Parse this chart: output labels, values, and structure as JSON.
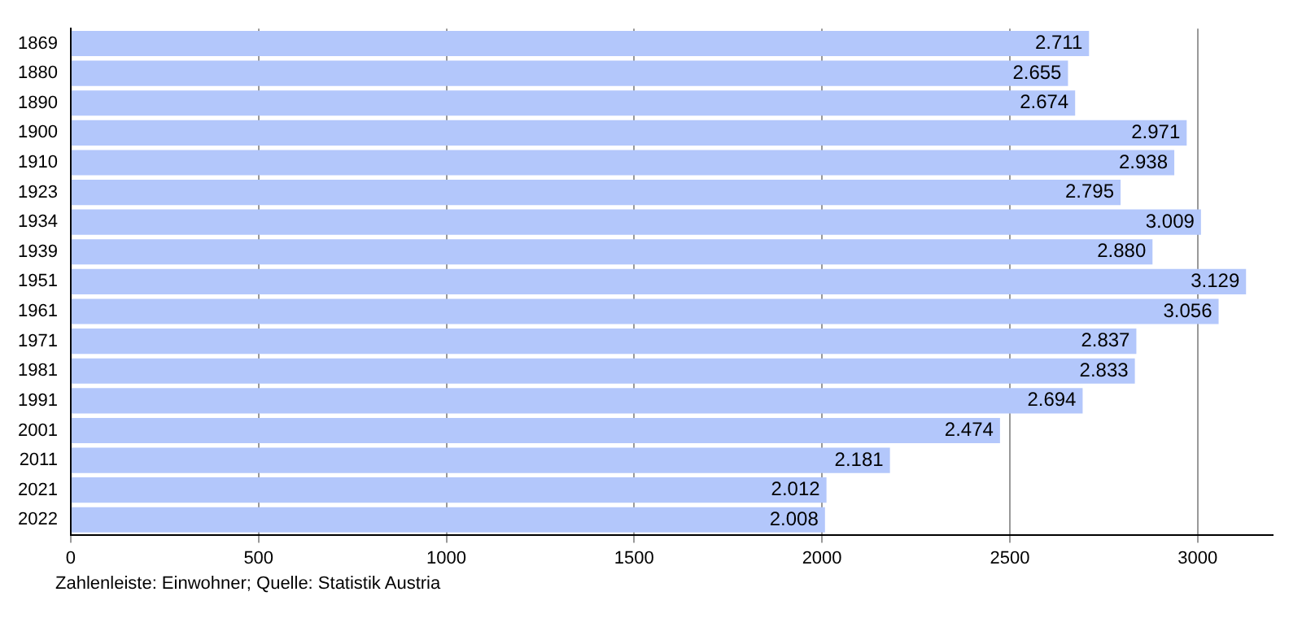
{
  "chart_data": {
    "type": "bar",
    "orientation": "horizontal",
    "categories": [
      "1869",
      "1880",
      "1890",
      "1900",
      "1910",
      "1923",
      "1934",
      "1939",
      "1951",
      "1961",
      "1971",
      "1981",
      "1991",
      "2001",
      "2011",
      "2021",
      "2022"
    ],
    "values": [
      2711,
      2655,
      2674,
      2971,
      2938,
      2795,
      3009,
      2880,
      3129,
      3056,
      2837,
      2833,
      2694,
      2474,
      2181,
      2012,
      2008
    ],
    "value_labels": [
      "2.711",
      "2.655",
      "2.674",
      "2.971",
      "2.938",
      "2.795",
      "3.009",
      "2.880",
      "3.129",
      "3.056",
      "2.837",
      "2.833",
      "2.694",
      "2.474",
      "2.181",
      "2.012",
      "2.008"
    ],
    "color": "#b3c7fb",
    "xlim": [
      0,
      3200
    ],
    "xticks": [
      0,
      500,
      1000,
      1500,
      2000,
      2500,
      3000
    ],
    "grid": "x",
    "annotations": [
      "Zahlenleiste: Einwohner; Quelle: Statistik Austria"
    ]
  }
}
